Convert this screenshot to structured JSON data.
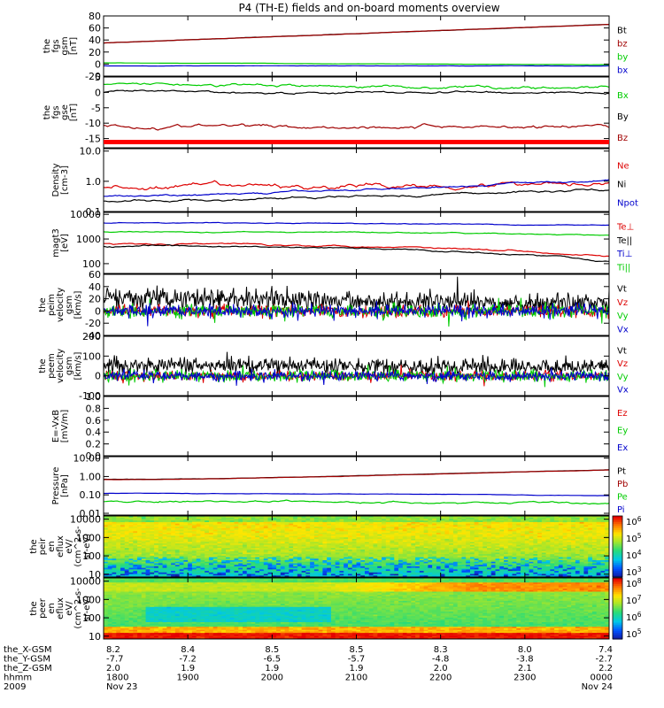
{
  "title": "P4 (TH-E) fields and on-board moments overview",
  "chart_data": [
    {
      "type": "line",
      "ylabel": [
        "the",
        "fgs",
        "gsm",
        "[nT]"
      ],
      "ylim": [
        -20,
        80
      ],
      "scale": "linear",
      "yticks": [
        -20,
        0,
        20,
        40,
        60,
        80
      ],
      "series": [
        {
          "name": "Bt",
          "color": "#000000",
          "start": 35,
          "end": 66,
          "noise": 0.4,
          "style": "trend"
        },
        {
          "name": "bz",
          "color": "#a00000",
          "start": 35,
          "end": 66,
          "noise": 0.3,
          "style": "trend"
        },
        {
          "name": "by",
          "color": "#00cc00",
          "start": 2,
          "end": -1,
          "noise": 0.3,
          "style": "trend"
        },
        {
          "name": "bx",
          "color": "#0000cc",
          "start": -3,
          "end": -3,
          "noise": 0.3,
          "style": "trend"
        }
      ]
    },
    {
      "type": "line",
      "ylabel": [
        "the",
        "fgs",
        "gse",
        "[nT]"
      ],
      "ylim": [
        -18,
        5
      ],
      "scale": "linear",
      "yticks": [
        -15,
        -10,
        -5,
        0,
        5
      ],
      "series": [
        {
          "name": "Bx",
          "color": "#00cc00",
          "start": 2.5,
          "end": 1.5,
          "noise": 0.9,
          "style": "trend"
        },
        {
          "name": "By",
          "color": "#000000",
          "start": 0,
          "end": 0,
          "noise": 0.7,
          "style": "trend"
        },
        {
          "name": "Bz",
          "color": "#a00000",
          "start": -11,
          "end": -11,
          "noise": 1.1,
          "style": "trend"
        }
      ]
    },
    {
      "type": "line",
      "ylabel": [
        "Density",
        "[cm-3]"
      ],
      "ylim": [
        0.1,
        12
      ],
      "scale": "log",
      "yticks": [
        0.1,
        1.0,
        10.0
      ],
      "tick_labels": [
        "0.1",
        "1.0",
        "10.0"
      ],
      "series": [
        {
          "name": "Ne",
          "color": "#dd0000",
          "start": 0.6,
          "end": 1.0,
          "noise": 0.25,
          "style": "trend"
        },
        {
          "name": "Ni",
          "color": "#000000",
          "start": 0.22,
          "end": 0.55,
          "noise": 0.12,
          "style": "trend"
        },
        {
          "name": "Npot",
          "color": "#0000cc",
          "start": 0.32,
          "end": 1.1,
          "noise": 0.1,
          "style": "trend"
        }
      ]
    },
    {
      "type": "line",
      "ylabel": [
        "magt3",
        "[eV]"
      ],
      "ylim": [
        40,
        12000
      ],
      "scale": "log",
      "yticks": [
        100,
        1000,
        10000
      ],
      "tick_labels": [
        "100",
        "1000",
        "10000"
      ],
      "series": [
        {
          "name": "Te⊥",
          "color": "#dd0000",
          "start": 650,
          "end": 200,
          "noise": 0.1,
          "style": "trend"
        },
        {
          "name": "Te||",
          "color": "#000000",
          "start": 500,
          "end": 130,
          "noise": 0.1,
          "style": "trend"
        },
        {
          "name": "Ti⊥",
          "color": "#0000cc",
          "start": 4500,
          "end": 3500,
          "noise": 0.05,
          "style": "trend"
        },
        {
          "name": "Ti||",
          "color": "#00cc00",
          "start": 2000,
          "end": 1400,
          "noise": 0.06,
          "style": "trend"
        }
      ]
    },
    {
      "type": "line",
      "ylabel": [
        "the",
        "peim",
        "velocity",
        "gsm",
        "[km/s]"
      ],
      "ylim": [
        -40,
        60
      ],
      "scale": "linear",
      "yticks": [
        -40,
        -20,
        0,
        20,
        40,
        60
      ],
      "series": [
        {
          "name": "Vt",
          "color": "#000000",
          "start": 22,
          "end": 12,
          "noise": 12,
          "style": "noisy",
          "positive": true
        },
        {
          "name": "Vz",
          "color": "#dd0000",
          "start": 0,
          "end": 0,
          "noise": 7,
          "style": "noisy"
        },
        {
          "name": "Vy",
          "color": "#00cc00",
          "start": 0,
          "end": 0,
          "noise": 8,
          "style": "noisy"
        },
        {
          "name": "Vx",
          "color": "#0000cc",
          "start": 0,
          "end": 0,
          "noise": 7,
          "style": "noisy"
        }
      ]
    },
    {
      "type": "line",
      "ylabel": [
        "the",
        "peem",
        "velocity",
        "gsm",
        "[km/s]"
      ],
      "ylim": [
        -100,
        200
      ],
      "scale": "linear",
      "yticks": [
        -100,
        0,
        100,
        200
      ],
      "series": [
        {
          "name": "Vt",
          "color": "#000000",
          "start": 55,
          "end": 45,
          "noise": 28,
          "style": "noisy",
          "positive": true
        },
        {
          "name": "Vz",
          "color": "#dd0000",
          "start": 0,
          "end": 0,
          "noise": 18,
          "style": "noisy"
        },
        {
          "name": "Vy",
          "color": "#00cc00",
          "start": 0,
          "end": 0,
          "noise": 20,
          "style": "noisy"
        },
        {
          "name": "Vx",
          "color": "#0000cc",
          "start": 0,
          "end": 0,
          "noise": 18,
          "style": "noisy"
        }
      ]
    },
    {
      "type": "line",
      "ylabel": [
        "E=-VxB",
        "[mV/m]"
      ],
      "ylim": [
        0.0,
        1.0
      ],
      "scale": "linear",
      "yticks": [
        0.0,
        0.2,
        0.4,
        0.6,
        0.8,
        1.0
      ],
      "tick_labels": [
        "0.0",
        "0.2",
        "0.4",
        "0.6",
        "0.8",
        "1.0"
      ],
      "series": [
        {
          "name": "Ez",
          "color": "#dd0000",
          "style": "none"
        },
        {
          "name": "Ey",
          "color": "#00cc00",
          "style": "none"
        },
        {
          "name": "Ex",
          "color": "#0000cc",
          "style": "none"
        }
      ]
    },
    {
      "type": "line",
      "ylabel": [
        "Pressure",
        "[nPa]"
      ],
      "ylim": [
        0.008,
        12
      ],
      "scale": "log",
      "yticks": [
        0.01,
        0.1,
        1.0,
        10.0
      ],
      "tick_labels": [
        "0.01",
        "0.10",
        "1.00",
        "10.00"
      ],
      "series": [
        {
          "name": "Pt",
          "color": "#000000",
          "start": 0.7,
          "end": 2.3,
          "noise": 0.02,
          "style": "trend"
        },
        {
          "name": "Pb",
          "color": "#a00000",
          "start": 0.68,
          "end": 2.25,
          "noise": 0.02,
          "style": "trend"
        },
        {
          "name": "Pe",
          "color": "#00cc00",
          "start": 0.045,
          "end": 0.03,
          "noise": 0.15,
          "style": "trend"
        },
        {
          "name": "Pi",
          "color": "#0000cc",
          "start": 0.12,
          "end": 0.09,
          "noise": 0.03,
          "style": "trend"
        }
      ]
    },
    {
      "type": "heatmap",
      "ylabel": [
        "the",
        "peir",
        "en",
        "eflux",
        "eV/",
        "(cm^2-s-",
        "sr-eV)"
      ],
      "ylim": [
        7,
        15000
      ],
      "scale": "log",
      "yticks": [
        10,
        100,
        1000,
        10000
      ],
      "tick_labels": [
        "10",
        "100",
        "1000",
        "10000"
      ],
      "colorbar": {
        "labels": [
          "10^3",
          "10^4",
          "10^5",
          "10^6"
        ]
      },
      "variant": "ion"
    },
    {
      "type": "heatmap",
      "ylabel": [
        "the",
        "peer",
        "en",
        "eflux",
        "eV/",
        "(cm^2-s-",
        "sr-eV)"
      ],
      "ylim": [
        7,
        15000
      ],
      "scale": "log",
      "yticks": [
        10,
        100,
        1000,
        10000
      ],
      "tick_labels": [
        "10",
        "100",
        "1000",
        "10000"
      ],
      "colorbar": {
        "labels": [
          "10^5",
          "10^6",
          "10^7",
          "10^8"
        ]
      },
      "variant": "electron"
    }
  ],
  "time_axis": {
    "rows": [
      {
        "label": "the_X-GSM",
        "values": [
          "8.2",
          "8.4",
          "8.5",
          "8.5",
          "8.3",
          "8.0",
          "7.4"
        ]
      },
      {
        "label": "the_Y-GSM",
        "values": [
          "-7.7",
          "-7.2",
          "-6.5",
          "-5.7",
          "-4.8",
          "-3.8",
          "-2.7"
        ]
      },
      {
        "label": "the_Z-GSM",
        "values": [
          "2.0",
          "1.9",
          "1.9",
          "1.9",
          "2.0",
          "2.1",
          "2.2"
        ]
      },
      {
        "label": "hhmm",
        "values": [
          "1800",
          "1900",
          "2000",
          "2100",
          "2200",
          "2300",
          "0000"
        ]
      },
      {
        "label": "2009",
        "values": [
          "Nov 23",
          "",
          "",
          "",
          "",
          "",
          "Nov 24"
        ]
      }
    ]
  }
}
